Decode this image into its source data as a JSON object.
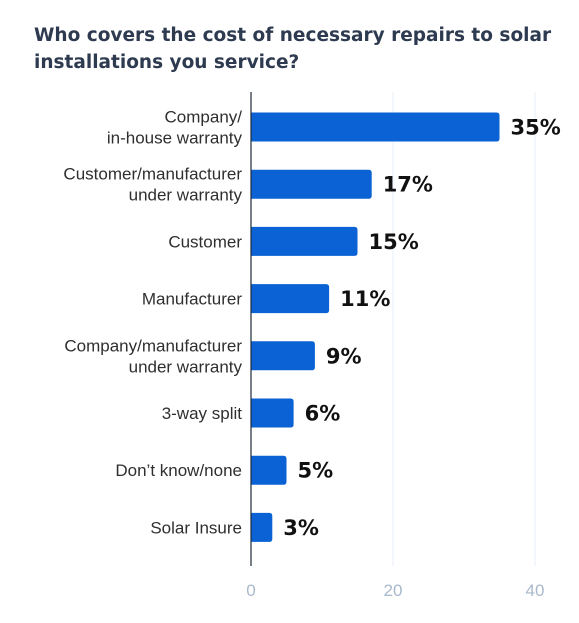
{
  "chart_data": {
    "type": "bar",
    "orientation": "horizontal",
    "title": "Who covers the cost of necessary repairs to solar\ninstallations you service?",
    "categories": [
      "Company/\nin-house warranty",
      "Customer/manufacturer\nunder warranty",
      "Customer",
      "Manufacturer",
      "Company/manufacturer\nunder warranty",
      "3-way split",
      "Don’t know/none",
      "Solar Insure"
    ],
    "values": [
      35,
      17,
      15,
      11,
      9,
      6,
      5,
      3
    ],
    "value_labels": [
      "35%",
      "17%",
      "15%",
      "11%",
      "9%",
      "6%",
      "5%",
      "3%"
    ],
    "xticks": [
      0,
      20,
      40
    ],
    "xlim": [
      0,
      40
    ],
    "grid": true,
    "bar_color": "#0a62d4"
  }
}
